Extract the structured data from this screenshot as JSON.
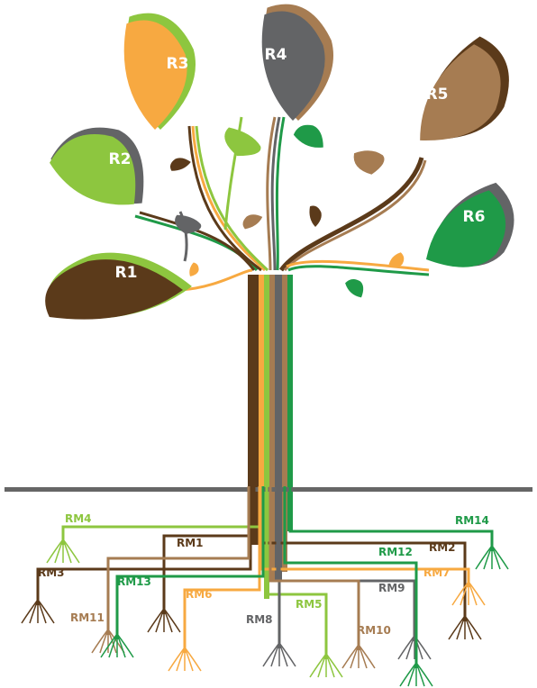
{
  "leaves": [
    {
      "label": "R1"
    },
    {
      "label": "R2"
    },
    {
      "label": "R3"
    },
    {
      "label": "R4"
    },
    {
      "label": "R5"
    },
    {
      "label": "R6"
    }
  ],
  "roots": [
    {
      "label": "RM1"
    },
    {
      "label": "RM2"
    },
    {
      "label": "RM3"
    },
    {
      "label": "RM4"
    },
    {
      "label": "RM5"
    },
    {
      "label": "RM6"
    },
    {
      "label": "RM7"
    },
    {
      "label": "RM8"
    },
    {
      "label": "RM9"
    },
    {
      "label": "RM10"
    },
    {
      "label": "RM11"
    },
    {
      "label": "RM12"
    },
    {
      "label": "RM13"
    },
    {
      "label": "RM14"
    }
  ]
}
